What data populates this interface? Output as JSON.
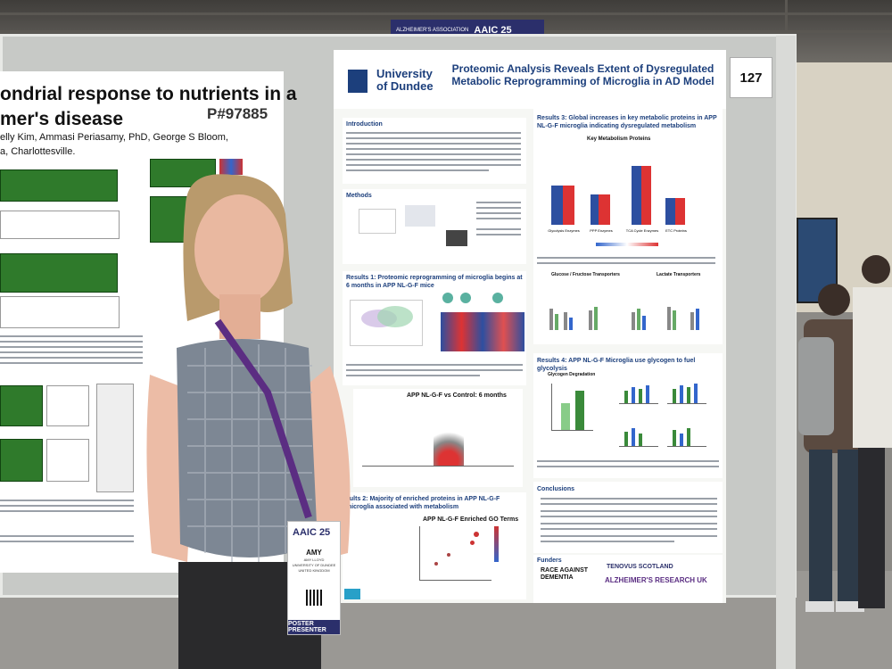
{
  "venue": {
    "banner_org": "ALZHEIMER'S ASSOCIATION",
    "banner_event": "AAIC 25"
  },
  "board": {
    "poster_number": "127"
  },
  "left_poster": {
    "title_line1": "ondrial response to nutrients in a",
    "title_line2": "mer's disease",
    "poster_id": "P#97885",
    "authors_line1": "elly Kim, Ammasi Periasamy, PhD, George S Bloom,",
    "authors_line2": "a, Charlottesville."
  },
  "right_poster": {
    "university_line1": "University",
    "university_line2": "of Dundee",
    "title": "Proteomic Analysis Reveals Extent of Dysregulated Metabolic Reprogramming of Microglia in AD Model",
    "sections": {
      "introduction": "Introduction",
      "methods": "Methods",
      "results1": "Results 1: Proteomic reprogramming of microglia begins at 6 months in APP NL-G-F mice",
      "results2": "sults 2: Majority of enriched proteins in APP NL-G-F microglia associated with metabolism",
      "results3": "Results 3: Global increases in key metabolic proteins in APP NL-G-F microglia indicating dysregulated metabolism",
      "results4": "Results 4: APP NL-G-F Microglia use glycogen to fuel glycolysis",
      "conclusions": "Conclusions",
      "funders": "Funders"
    },
    "chart_labels": {
      "key_metabolism": "Key Metabolism Proteins",
      "glycolysis": "Glycolysis Enzymes",
      "ppp": "PPP Enzymes",
      "tca": "TCA Cycle Enzymes",
      "etc": "ETC Proteins",
      "glucose_transporters": "Glucose / Fructose Transporters",
      "lactate_transporters": "Lactate Transporters",
      "glycogen_degradation": "Glycogen Degradation",
      "volcano_title": "APP NL-G-F vs Control: 6 months",
      "go_terms": "APP NL-G-F Enriched GO Terms"
    },
    "funder_logos": {
      "race_against_dementia": "RACE AGAINST DEMENTIA",
      "tenovus": "TENOVUS SCOTLAND",
      "alzheimers_research_uk": "ALZHEIMER'S RESEARCH UK"
    }
  },
  "badge": {
    "event": "AAIC 25",
    "name": "AMY",
    "affiliation_line1": "AMY LLOYD",
    "affiliation_line2": "UNIVERSITY OF DUNDEE",
    "affiliation_line3": "UNITED KINGDOM",
    "role": "POSTER PRESENTER"
  },
  "colors": {
    "poster_blue": "#1c3f7c",
    "badge_navy": "#2b2f6b",
    "lanyard_purple": "#5b2d82",
    "dress_check": "#7d8794"
  }
}
